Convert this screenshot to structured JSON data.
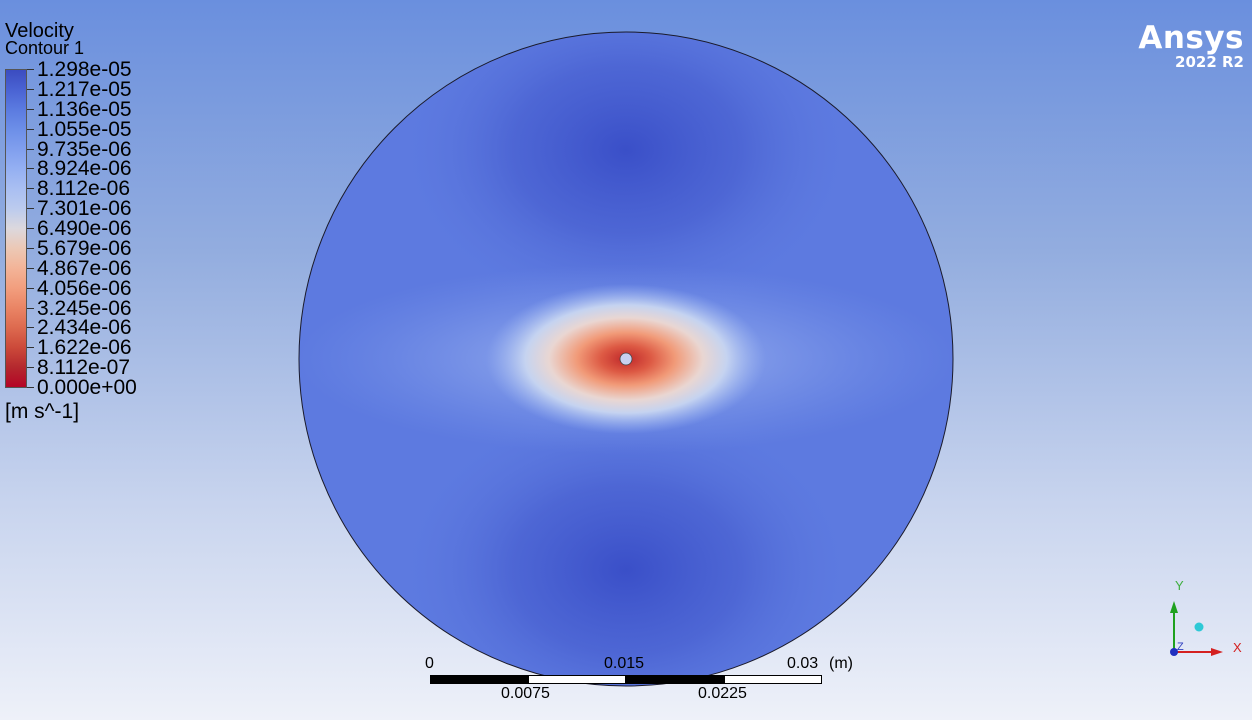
{
  "legend": {
    "title": "Velocity",
    "subtitle": "Contour 1",
    "values": [
      "1.298e-05",
      "1.217e-05",
      "1.136e-05",
      "1.055e-05",
      "9.735e-06",
      "8.924e-06",
      "8.112e-06",
      "7.301e-06",
      "6.490e-06",
      "5.679e-06",
      "4.867e-06",
      "4.056e-06",
      "3.245e-06",
      "2.434e-06",
      "1.622e-06",
      "8.112e-07",
      "0.000e+00"
    ],
    "units": "[m s^-1]",
    "colors": [
      "#3b4cc0",
      "#4a63d3",
      "#5b7be0",
      "#6d8fe8",
      "#819fee",
      "#95b0f2",
      "#a9bff2",
      "#bccbee",
      "#dcd8dd",
      "#ecc8b5",
      "#f3b498",
      "#f29e7e",
      "#ea8565",
      "#dd6a4f",
      "#cc4a3a",
      "#b4282e",
      "#b40426"
    ]
  },
  "brand": {
    "name": "Ansys",
    "version": "2022 R2"
  },
  "scale": {
    "labels_top": [
      "0",
      "0.015",
      "0.03"
    ],
    "labels_bottom": [
      "0.0075",
      "0.0225"
    ],
    "unit": "(m)"
  },
  "axes": {
    "x": "X",
    "y": "Y",
    "z": "Z"
  }
}
